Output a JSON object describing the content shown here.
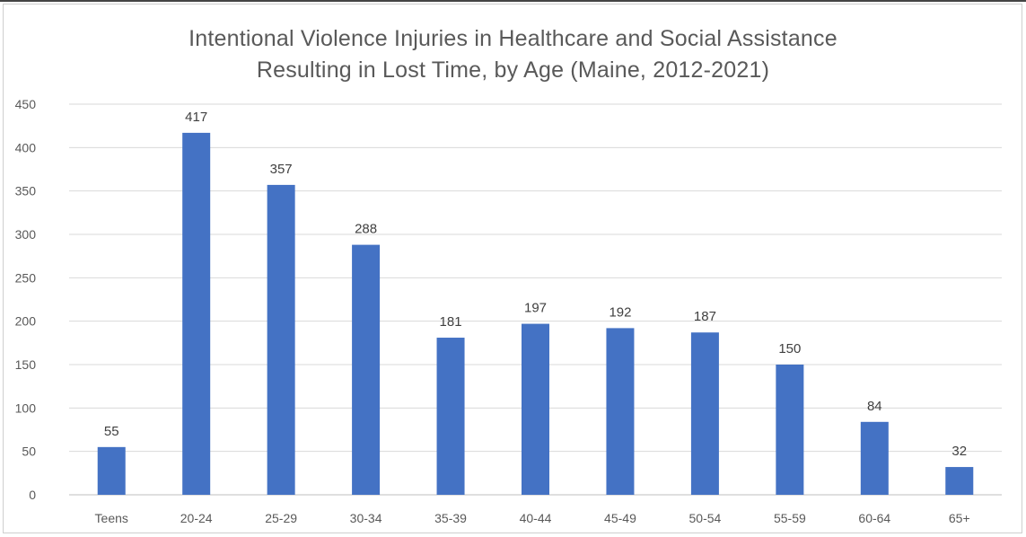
{
  "chart_data": {
    "type": "bar",
    "title_lines": [
      "Intentional Violence Injuries in Healthcare and Social Assistance",
      "Resulting in Lost Time, by Age (Maine, 2012-2021)"
    ],
    "categories": [
      "Teens",
      "20-24",
      "25-29",
      "30-34",
      "35-39",
      "40-44",
      "45-49",
      "50-54",
      "55-59",
      "60-64",
      "65+"
    ],
    "values": [
      55,
      417,
      357,
      288,
      181,
      197,
      192,
      187,
      150,
      84,
      32
    ],
    "data_labels": [
      "55",
      "417",
      "357",
      "288",
      "181",
      "197",
      "192",
      "187",
      "150",
      "84",
      "32"
    ],
    "yticks": [
      0,
      50,
      100,
      150,
      200,
      250,
      300,
      350,
      400,
      450
    ],
    "ytick_labels": [
      "0",
      "50",
      "100",
      "150",
      "200",
      "250",
      "300",
      "350",
      "400",
      "450"
    ],
    "ylim": [
      0,
      450
    ],
    "xlabel": "",
    "ylabel": "",
    "grid": true,
    "legend": "none",
    "bar_color": "#4472c4"
  }
}
